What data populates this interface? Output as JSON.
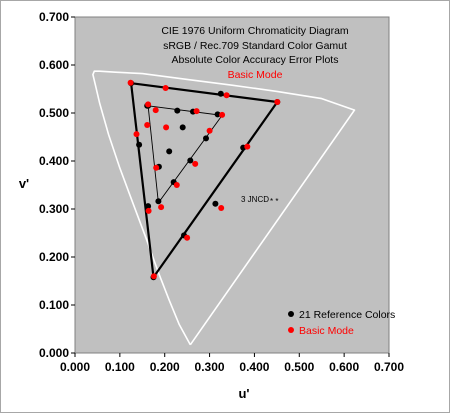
{
  "colors": {
    "plot_bg": "#c0c0c0",
    "locus": "#ffffff",
    "reference": "#000000",
    "basic_mode": "#ff0000",
    "basic_mode_title": "#ff0000"
  },
  "chart_data": {
    "type": "scatter",
    "title_lines": [
      "CIE 1976 Uniform Chromaticity Diagram",
      "sRGB / Rec.709 Standard Color Gamut",
      "Absolute Color Accuracy Error Plots"
    ],
    "subtitle": "Basic Mode",
    "xlabel": "u'",
    "ylabel": "v'",
    "xlim": [
      0,
      0.7
    ],
    "ylim": [
      0,
      0.7
    ],
    "x_ticks": [
      "0.000",
      "0.100",
      "0.200",
      "0.300",
      "0.400",
      "0.500",
      "0.600",
      "0.700"
    ],
    "y_ticks": [
      "0.000",
      "0.100",
      "0.200",
      "0.300",
      "0.400",
      "0.500",
      "0.600",
      "0.700"
    ],
    "grid": false,
    "legend_position": "bottom-right",
    "annotation": "3 JNCD",
    "annotation_marker": "* *",
    "series": [
      {
        "name": "21 Reference Colors",
        "color": "#000000",
        "points": [
          [
            0.125,
            0.562
          ],
          [
            0.451,
            0.523
          ],
          [
            0.175,
            0.158
          ],
          [
            0.163,
            0.515
          ],
          [
            0.325,
            0.54
          ],
          [
            0.228,
            0.505
          ],
          [
            0.375,
            0.428
          ],
          [
            0.313,
            0.311
          ],
          [
            0.243,
            0.245
          ],
          [
            0.163,
            0.306
          ],
          [
            0.143,
            0.434
          ],
          [
            0.186,
            0.316
          ],
          [
            0.22,
            0.356
          ],
          [
            0.257,
            0.401
          ],
          [
            0.292,
            0.447
          ],
          [
            0.263,
            0.503
          ],
          [
            0.318,
            0.497
          ],
          [
            0.161,
            0.515
          ],
          [
            0.187,
            0.388
          ],
          [
            0.21,
            0.42
          ],
          [
            0.24,
            0.47
          ]
        ]
      },
      {
        "name": "Basic Mode",
        "color": "#ff0000",
        "points": [
          [
            0.124,
            0.563
          ],
          [
            0.451,
            0.523
          ],
          [
            0.176,
            0.16
          ],
          [
            0.163,
            0.518
          ],
          [
            0.338,
            0.537
          ],
          [
            0.202,
            0.552
          ],
          [
            0.384,
            0.43
          ],
          [
            0.326,
            0.302
          ],
          [
            0.25,
            0.24
          ],
          [
            0.164,
            0.296
          ],
          [
            0.137,
            0.456
          ],
          [
            0.192,
            0.304
          ],
          [
            0.227,
            0.35
          ],
          [
            0.268,
            0.394
          ],
          [
            0.3,
            0.463
          ],
          [
            0.271,
            0.504
          ],
          [
            0.328,
            0.496
          ],
          [
            0.18,
            0.506
          ],
          [
            0.181,
            0.386
          ],
          [
            0.203,
            0.47
          ],
          [
            0.161,
            0.475
          ]
        ]
      }
    ],
    "triangles": [
      {
        "name": "sRGB gamut",
        "vertices": [
          [
            0.125,
            0.562
          ],
          [
            0.451,
            0.523
          ],
          [
            0.175,
            0.158
          ]
        ]
      },
      {
        "name": "inner gamut",
        "vertices": [
          [
            0.163,
            0.515
          ],
          [
            0.328,
            0.495
          ],
          [
            0.186,
            0.313
          ]
        ]
      }
    ],
    "spectral_locus": [
      [
        0.257,
        0.017
      ],
      [
        0.232,
        0.06
      ],
      [
        0.21,
        0.11
      ],
      [
        0.185,
        0.17
      ],
      [
        0.16,
        0.235
      ],
      [
        0.13,
        0.31
      ],
      [
        0.1,
        0.385
      ],
      [
        0.075,
        0.455
      ],
      [
        0.055,
        0.52
      ],
      [
        0.045,
        0.56
      ],
      [
        0.04,
        0.58
      ],
      [
        0.043,
        0.587
      ],
      [
        0.055,
        0.587
      ],
      [
        0.09,
        0.585
      ],
      [
        0.15,
        0.582
      ],
      [
        0.25,
        0.57
      ],
      [
        0.35,
        0.558
      ],
      [
        0.45,
        0.545
      ],
      [
        0.55,
        0.53
      ],
      [
        0.623,
        0.506
      ],
      [
        0.257,
        0.017
      ]
    ]
  }
}
